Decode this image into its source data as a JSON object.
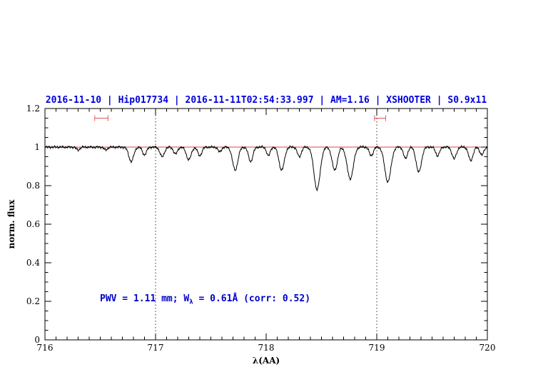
{
  "title": {
    "text": "2016-11-10 | Hip017734 | 2016-11-11T02:54:33.997 | AM=1.16 | XSHOOTER | S0.9x11",
    "color": "#0000dd"
  },
  "chart_data": {
    "type": "line",
    "title": "2016-11-10 | Hip017734 | 2016-11-11T02:54:33.997 | AM=1.16 | XSHOOTER | S0.9x11",
    "xlabel": "λ(AA)",
    "ylabel": "norm. flux",
    "xlim": [
      716,
      720
    ],
    "ylim": [
      0,
      1.2
    ],
    "x_ticks": [
      716,
      717,
      718,
      719,
      720
    ],
    "y_ticks": [
      0,
      0.2,
      0.4,
      0.6,
      0.8,
      1,
      1.2
    ],
    "x_minor_step": 0.1,
    "y_minor_step": 0.05,
    "grid": false,
    "legend": "none",
    "vlines": [
      {
        "x": 717,
        "style": "dotted",
        "color": "#000000"
      },
      {
        "x": 719,
        "style": "dotted",
        "color": "#000000"
      }
    ],
    "continuum": {
      "y": 1.0,
      "color": "#dd0000"
    },
    "range_markers": [
      {
        "x1": 716.45,
        "x2": 716.57,
        "y": 1.15,
        "color": "#e05555"
      },
      {
        "x1": 718.98,
        "x2": 719.08,
        "y": 1.15,
        "color": "#e05555"
      }
    ],
    "annotation": {
      "prefix": "PWV = 1.11 mm; W",
      "sub": "λ",
      "suffix": " = 0.61Å (corr: 0.52)",
      "x": 716.5,
      "y": 0.2,
      "color": "#0000cc"
    },
    "spectrum": {
      "color": "#000000",
      "continuum_level": 1.0,
      "noise_amp": 0.0035,
      "absorption_lines": [
        {
          "c": 716.3,
          "d": 0.015,
          "s": 0.015
        },
        {
          "c": 716.55,
          "d": 0.015,
          "s": 0.015
        },
        {
          "c": 716.78,
          "d": 0.075,
          "s": 0.022
        },
        {
          "c": 716.9,
          "d": 0.04,
          "s": 0.018
        },
        {
          "c": 717.06,
          "d": 0.05,
          "s": 0.02
        },
        {
          "c": 717.18,
          "d": 0.035,
          "s": 0.018
        },
        {
          "c": 717.3,
          "d": 0.065,
          "s": 0.022
        },
        {
          "c": 717.4,
          "d": 0.045,
          "s": 0.018
        },
        {
          "c": 717.58,
          "d": 0.025,
          "s": 0.015
        },
        {
          "c": 717.72,
          "d": 0.12,
          "s": 0.024
        },
        {
          "c": 717.86,
          "d": 0.075,
          "s": 0.02
        },
        {
          "c": 718.02,
          "d": 0.045,
          "s": 0.016
        },
        {
          "c": 718.14,
          "d": 0.12,
          "s": 0.024
        },
        {
          "c": 718.3,
          "d": 0.05,
          "s": 0.018
        },
        {
          "c": 718.46,
          "d": 0.22,
          "s": 0.028
        },
        {
          "c": 718.62,
          "d": 0.12,
          "s": 0.024
        },
        {
          "c": 718.76,
          "d": 0.165,
          "s": 0.028
        },
        {
          "c": 718.95,
          "d": 0.045,
          "s": 0.018
        },
        {
          "c": 719.1,
          "d": 0.18,
          "s": 0.028
        },
        {
          "c": 719.26,
          "d": 0.06,
          "s": 0.018
        },
        {
          "c": 719.38,
          "d": 0.13,
          "s": 0.024
        },
        {
          "c": 719.55,
          "d": 0.045,
          "s": 0.018
        },
        {
          "c": 719.7,
          "d": 0.06,
          "s": 0.02
        },
        {
          "c": 719.85,
          "d": 0.07,
          "s": 0.02
        },
        {
          "c": 719.95,
          "d": 0.04,
          "s": 0.018
        }
      ]
    }
  }
}
